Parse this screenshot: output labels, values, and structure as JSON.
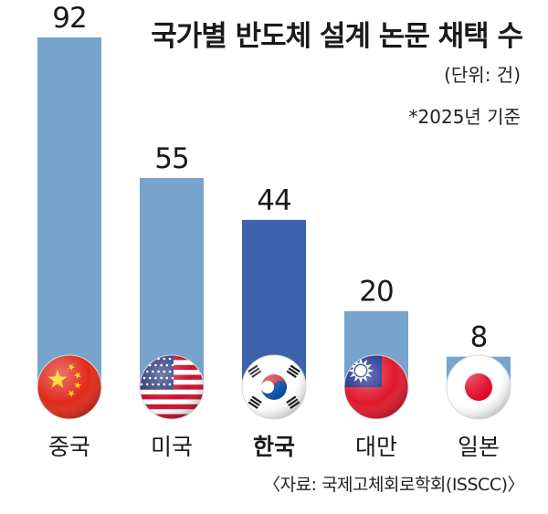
{
  "chart_data": {
    "type": "bar",
    "title": "국가별 반도체 설계 논문 채택 수",
    "unit": "(단위: 건)",
    "note": "*2025년 기준",
    "source": "〈자료: 국제고체회로학회(ISSCC)〉",
    "ylim": [
      0,
      92
    ],
    "grid": false,
    "legend": "none",
    "categories": [
      "중국",
      "미국",
      "한국",
      "대만",
      "일본"
    ],
    "values": [
      92,
      55,
      44,
      20,
      8
    ],
    "value_labels": [
      "92",
      "55",
      "44",
      "20",
      "8"
    ],
    "highlight_category": "한국",
    "colors": {
      "bar": "#76a4cd",
      "bar_highlight": "#3d62ac",
      "text": "#1a1a1a"
    },
    "flags": [
      "flag-china-icon",
      "flag-usa-icon",
      "flag-korea-icon",
      "flag-taiwan-icon",
      "flag-japan-icon"
    ]
  }
}
